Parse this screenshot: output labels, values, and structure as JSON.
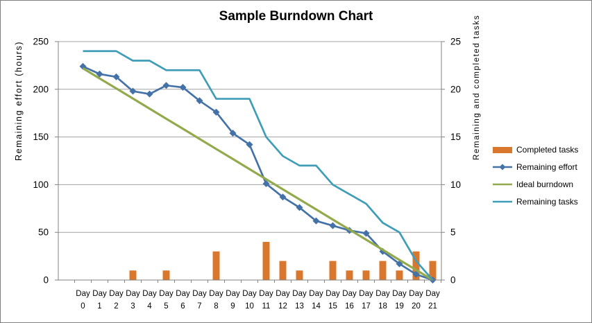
{
  "chart_data": {
    "type": "combo",
    "title": "Sample Burndown Chart",
    "categories": [
      "Day 0",
      "Day 1",
      "Day 2",
      "Day 3",
      "Day 4",
      "Day 5",
      "Day 6",
      "Day 7",
      "Day 8",
      "Day 9",
      "Day 10",
      "Day 11",
      "Day 12",
      "Day 13",
      "Day 14",
      "Day 15",
      "Day 16",
      "Day 17",
      "Day 18",
      "Day 19",
      "Day 20",
      "Day 21"
    ],
    "left_axis": {
      "title": "Remaining effort (hours)",
      "min": 0,
      "max": 250,
      "ticks": [
        0,
        50,
        100,
        150,
        200,
        250
      ]
    },
    "right_axis": {
      "title": "Remaining and completed tasks",
      "min": 0,
      "max": 25,
      "ticks": [
        0,
        5,
        10,
        15,
        20,
        25
      ]
    },
    "grid": "horizontal",
    "legend_position": "right",
    "series": [
      {
        "name": "Completed tasks",
        "type": "bar",
        "axis": "right",
        "color": "#d9782d",
        "values": [
          0,
          0,
          0,
          1,
          0,
          1,
          0,
          0,
          3,
          0,
          0,
          4,
          2,
          1,
          0,
          2,
          1,
          1,
          2,
          1,
          3,
          2
        ]
      },
      {
        "name": "Remaining effort",
        "type": "line",
        "marker": "diamond",
        "axis": "left",
        "color": "#4472a8",
        "values": [
          224,
          216,
          213,
          198,
          195,
          204,
          202,
          188,
          176,
          154,
          142,
          101,
          87,
          76,
          62,
          57,
          52,
          49,
          30,
          17,
          6,
          0
        ]
      },
      {
        "name": "Ideal burndown",
        "type": "line",
        "axis": "left",
        "color": "#92aa4c",
        "values": [
          222,
          211.4,
          200.9,
          190.3,
          179.7,
          169.1,
          158.6,
          148,
          137.4,
          126.9,
          116.3,
          105.7,
          95.1,
          84.6,
          74,
          63.4,
          52.9,
          42.3,
          31.7,
          21.1,
          10.6,
          0
        ]
      },
      {
        "name": "Remaining tasks",
        "type": "line",
        "axis": "right",
        "color": "#3f9db8",
        "values": [
          24,
          24,
          24,
          23,
          23,
          22,
          22,
          22,
          19,
          19,
          19,
          15,
          13,
          12,
          12,
          10,
          9,
          8,
          6,
          5,
          2,
          0
        ]
      }
    ],
    "colors": {
      "gridline": "#a0a0a0",
      "axis_line": "#808080",
      "text": "#000000"
    }
  }
}
